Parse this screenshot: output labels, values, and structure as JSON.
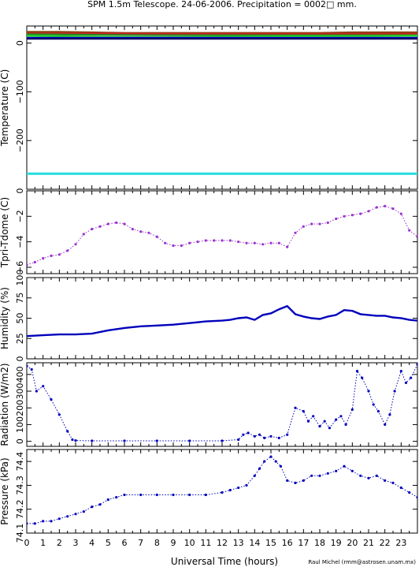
{
  "chart_data": [
    {
      "type": "line",
      "panel": "temperature",
      "title": "SPM 1.5m Telescope. 24-06-2006. Precipitation = 0002□ mm.",
      "ylabel": "Temperature (C)",
      "ylim": [
        -300,
        35
      ],
      "yticks": [
        0,
        -100,
        -200
      ],
      "ytick_labels": [
        "0",
        "−100",
        "−200"
      ],
      "grid": false,
      "series": [
        {
          "color": "#8b4513",
          "x": [
            0,
            2,
            4,
            6,
            8,
            10,
            12,
            14,
            16,
            18,
            20,
            22,
            24
          ],
          "values": [
            23,
            23,
            22,
            21,
            21,
            21,
            21,
            21,
            21,
            21,
            22,
            22,
            22
          ]
        },
        {
          "color": "#cc2222",
          "x": [
            0,
            4,
            8,
            12,
            16,
            20,
            24
          ],
          "values": [
            20,
            20,
            19,
            19,
            19,
            19,
            19
          ]
        },
        {
          "color": "#228b22",
          "x": [
            0,
            4,
            8,
            12,
            16,
            20,
            24
          ],
          "values": [
            18,
            17,
            16,
            16,
            16,
            16,
            16
          ]
        },
        {
          "color": "#22dd22",
          "x": [
            0,
            4,
            8,
            12,
            16,
            20,
            24
          ],
          "values": [
            15,
            13,
            12,
            13,
            14,
            14,
            15
          ]
        },
        {
          "color": "#0000cc",
          "x": [
            0,
            24
          ],
          "values": [
            11,
            11
          ]
        },
        {
          "color": "#000066",
          "x": [
            0,
            24
          ],
          "values": [
            9,
            9
          ]
        },
        {
          "color": "#22dddd",
          "x": [
            0,
            24
          ],
          "values": [
            -268,
            -268
          ]
        }
      ]
    },
    {
      "type": "scatter",
      "panel": "tdiff",
      "ylabel": "Tpri-Tdome (C)",
      "ylim": [
        -6.5,
        0
      ],
      "yticks": [
        0,
        -2,
        -4,
        -6
      ],
      "ytick_labels": [
        "0",
        "−2",
        "−4",
        "−6"
      ],
      "color": "#9932cc",
      "x": [
        0,
        0.5,
        1,
        1.5,
        2,
        2.5,
        3,
        3.5,
        4,
        4.5,
        5,
        5.5,
        6,
        6.5,
        7,
        7.5,
        8,
        8.5,
        9,
        9.5,
        10,
        10.5,
        11,
        11.5,
        12,
        12.5,
        13,
        13.5,
        14,
        14.5,
        15,
        15.5,
        16,
        16.5,
        17,
        17.5,
        18,
        18.5,
        19,
        19.5,
        20,
        20.5,
        21,
        21.5,
        22,
        22.5,
        23,
        23.5,
        24
      ],
      "values": [
        -5.8,
        -5.6,
        -5.3,
        -5.1,
        -5.0,
        -4.7,
        -4.2,
        -3.4,
        -3.0,
        -2.8,
        -2.6,
        -2.5,
        -2.6,
        -3.0,
        -3.2,
        -3.3,
        -3.6,
        -4.1,
        -4.3,
        -4.3,
        -4.1,
        -4.0,
        -3.9,
        -3.9,
        -3.9,
        -3.9,
        -4.0,
        -4.1,
        -4.1,
        -4.2,
        -4.1,
        -4.1,
        -4.4,
        -3.3,
        -2.8,
        -2.6,
        -2.6,
        -2.5,
        -2.2,
        -2.0,
        -1.9,
        -1.8,
        -1.6,
        -1.3,
        -1.2,
        -1.4,
        -1.8,
        -3.1,
        -3.6
      ]
    },
    {
      "type": "line",
      "panel": "humidity",
      "ylabel": "Humidity (%)",
      "ylim": [
        0,
        100
      ],
      "yticks": [
        0,
        25,
        50,
        75,
        100
      ],
      "ytick_labels": [
        "0",
        "25",
        "50",
        "75",
        "100"
      ],
      "color": "#0000bb",
      "x": [
        0,
        1,
        2,
        3,
        4,
        5,
        6,
        7,
        8,
        9,
        10,
        11,
        12,
        12.5,
        13,
        13.5,
        14,
        14.5,
        15,
        15.5,
        16,
        16.5,
        17,
        17.5,
        18,
        18.5,
        19,
        19.5,
        20,
        20.5,
        21,
        21.5,
        22,
        22.5,
        23,
        23.5,
        24
      ],
      "values": [
        28,
        29,
        30,
        30,
        31,
        35,
        38,
        40,
        41,
        42,
        44,
        46,
        47,
        48,
        50,
        51,
        48,
        54,
        56,
        61,
        65,
        55,
        52,
        50,
        49,
        52,
        54,
        60,
        59,
        55,
        54,
        53,
        53,
        51,
        50,
        48,
        47
      ]
    },
    {
      "type": "scatter",
      "panel": "radiation",
      "ylabel": "Radiation (W/m2)",
      "ylim": [
        -30,
        470
      ],
      "yticks": [
        0,
        100,
        200,
        300,
        400
      ],
      "ytick_labels": [
        "0",
        "100",
        "200",
        "300",
        "400"
      ],
      "color": "#0000bb",
      "x": [
        0,
        0.3,
        0.6,
        1,
        1.5,
        2,
        2.5,
        2.8,
        3,
        4,
        6,
        8,
        10,
        12,
        13,
        13.3,
        13.6,
        14,
        14.3,
        14.6,
        15,
        15.5,
        16,
        16.5,
        17,
        17.3,
        17.6,
        18,
        18.3,
        18.6,
        19,
        19.3,
        19.6,
        20,
        20.3,
        20.6,
        21,
        21.3,
        21.6,
        22,
        22.3,
        22.6,
        23,
        23.3,
        23.6,
        24
      ],
      "values": [
        450,
        430,
        300,
        330,
        250,
        160,
        60,
        10,
        5,
        3,
        3,
        3,
        3,
        3,
        10,
        40,
        50,
        30,
        40,
        20,
        30,
        20,
        40,
        200,
        180,
        120,
        150,
        90,
        120,
        80,
        130,
        150,
        100,
        190,
        420,
        380,
        300,
        220,
        180,
        100,
        160,
        300,
        420,
        350,
        380,
        460
      ]
    },
    {
      "type": "scatter",
      "panel": "pressure",
      "ylabel": "Pressure (kPa)",
      "ylim": [
        74.1,
        74.45
      ],
      "yticks": [
        74.1,
        74.2,
        74.3,
        74.4
      ],
      "ytick_labels": [
        "74.1",
        "74.2",
        "74.3",
        "74.4"
      ],
      "xlabel": "Universal Time (hours)",
      "xlim": [
        0,
        24
      ],
      "xticks": [
        0,
        1,
        2,
        3,
        4,
        5,
        6,
        7,
        8,
        9,
        10,
        11,
        12,
        13,
        14,
        15,
        16,
        17,
        18,
        19,
        20,
        21,
        22,
        23
      ],
      "xtick_labels": [
        "0",
        "1",
        "2",
        "3",
        "4",
        "5",
        "6",
        "7",
        "8",
        "9",
        "10",
        "11",
        "12",
        "13",
        "14",
        "15",
        "16",
        "17",
        "18",
        "19",
        "20",
        "21",
        "22",
        "23"
      ],
      "color": "#0000bb",
      "x": [
        0,
        0.5,
        1,
        1.5,
        2,
        2.5,
        3,
        3.5,
        4,
        4.5,
        5,
        5.5,
        6,
        7,
        8,
        9,
        10,
        11,
        12,
        12.5,
        13,
        13.5,
        14,
        14.3,
        14.6,
        15,
        15.3,
        15.6,
        16,
        16.5,
        17,
        17.5,
        18,
        18.5,
        19,
        19.5,
        20,
        20.5,
        21,
        21.5,
        22,
        22.5,
        23,
        23.5,
        24
      ],
      "values": [
        74.14,
        74.14,
        74.15,
        74.15,
        74.16,
        74.17,
        74.18,
        74.19,
        74.21,
        74.22,
        74.24,
        74.25,
        74.26,
        74.26,
        74.26,
        74.26,
        74.26,
        74.26,
        74.27,
        74.28,
        74.29,
        74.3,
        74.34,
        74.37,
        74.4,
        74.42,
        74.4,
        74.38,
        74.32,
        74.31,
        74.32,
        74.34,
        74.34,
        74.35,
        74.36,
        74.38,
        74.36,
        74.34,
        74.33,
        74.34,
        74.32,
        74.31,
        74.29,
        74.27,
        74.25
      ]
    }
  ],
  "credit": "Raul Michel (rmm@astrosen.unam.mx)"
}
